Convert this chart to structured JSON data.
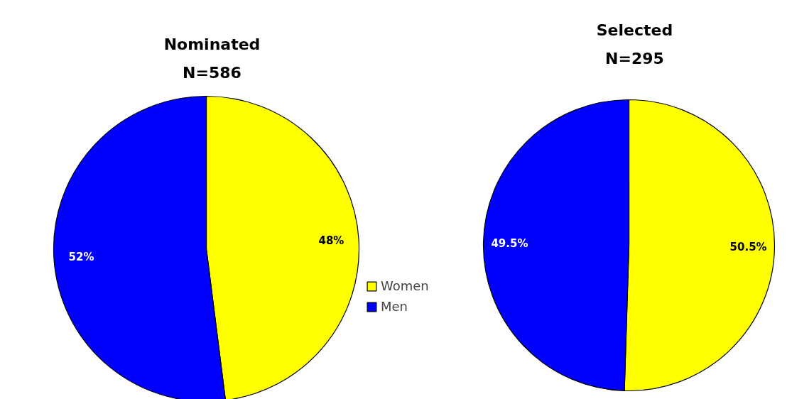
{
  "chart_data": [
    {
      "type": "pie",
      "title": "Nominated",
      "subtitle": "N=586",
      "categories": [
        "Women",
        "Men"
      ],
      "values": [
        48,
        52
      ],
      "value_labels": [
        "48%",
        "52%"
      ],
      "colors": [
        "#ffff00",
        "#0000ff"
      ],
      "legend": "right"
    },
    {
      "type": "pie",
      "title": "Selected",
      "subtitle": "N=295",
      "values": [
        50.5,
        49.5
      ],
      "value_labels": [
        "50.5%",
        "49.5%"
      ],
      "colors": [
        "#ffff00",
        "#0000ff"
      ]
    }
  ]
}
